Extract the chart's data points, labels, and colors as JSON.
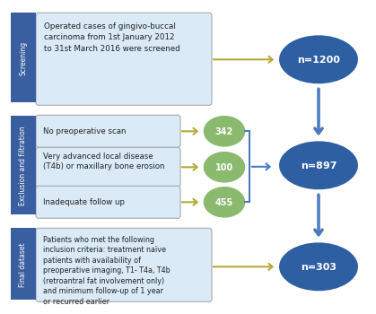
{
  "bg_color": "#ffffff",
  "sidebar_color": "#3a5fa0",
  "sidebar_text_color": "#ffffff",
  "box_color": "#daeaf7",
  "box_edge_color": "#aaaaaa",
  "screening_text": "Operated cases of gingivo-buccal\ncarcinoma from 1st January 2012\nto 31st March 2016 were screened",
  "exclusion_texts": [
    "No preoperative scan",
    "Very advanced local disease\n(T4b) or maxillary bone erosion",
    "Inadequate follow up"
  ],
  "final_text": "Patients who met the following\ninclusion criteria: treatment naïve\npatients with availability of\npreoperative imaging, T1- T4a, T4b\n(retroantral fat involvement only)\nand minimum follow-up of 1 year\nor recurred earlier",
  "circle_color": "#2e5fa3",
  "circle_text_color": "#ffffff",
  "circle_labels": [
    "n=1200",
    "n=897",
    "n=303"
  ],
  "green_circle_color": "#8aba6e",
  "green_circle_text_color": "#ffffff",
  "green_values": [
    "342",
    "100",
    "455"
  ],
  "arrow_color": "#b5a93a",
  "connect_arrow_color": "#4a7bbf",
  "brace_color": "#4a7bbf"
}
